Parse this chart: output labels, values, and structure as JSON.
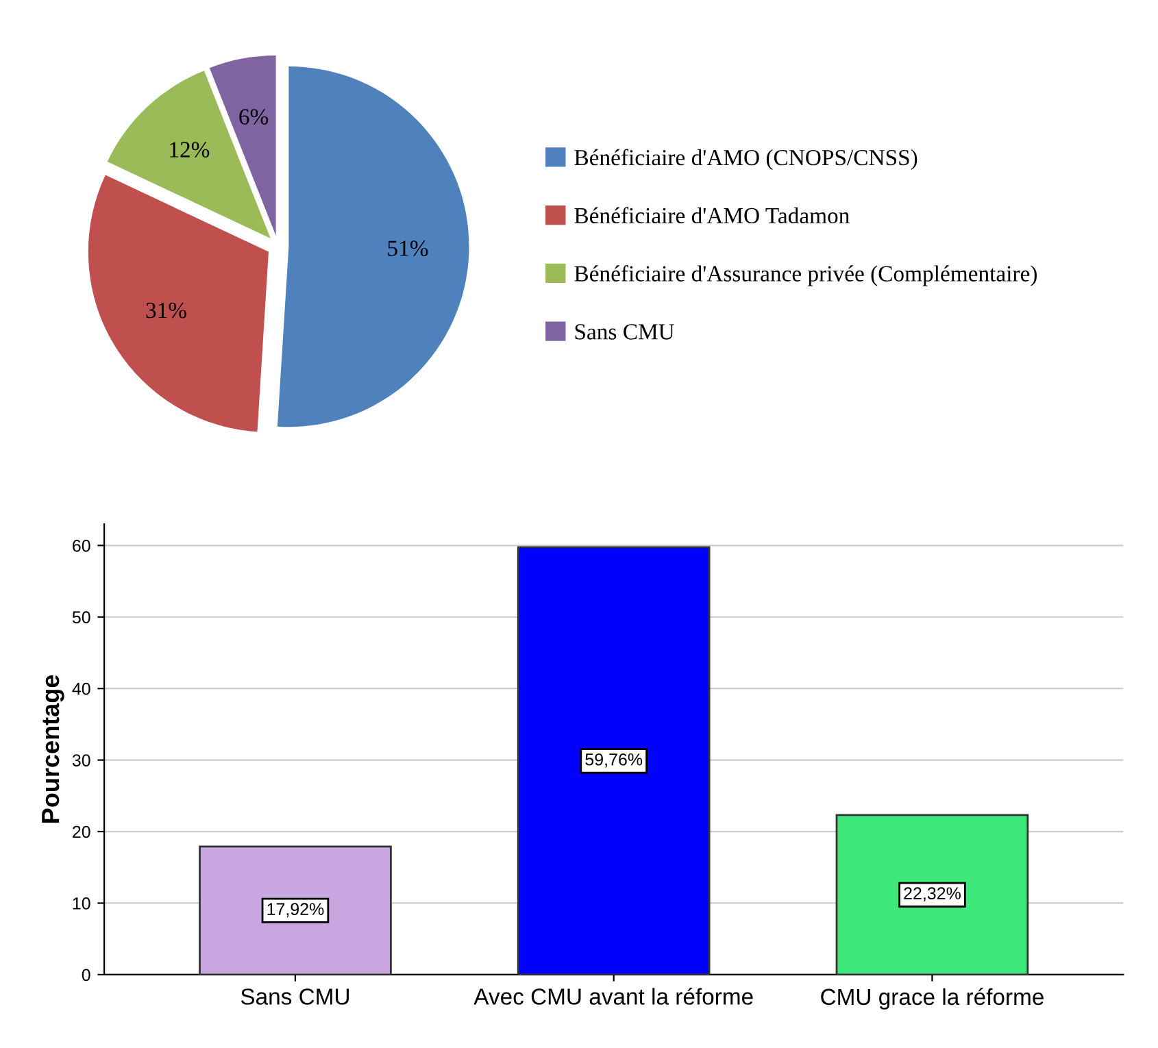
{
  "chart_data": [
    {
      "type": "pie",
      "categories": [
        "Bénéficiaire d'AMO (CNOPS/CNSS)",
        "Bénéficiaire d'AMO Tadamon",
        "Bénéficiaire d'Assurance privée (Complémentaire)",
        "Sans CMU"
      ],
      "values": [
        51,
        31,
        12,
        6
      ],
      "colors": [
        "#4f81bd",
        "#c0504d",
        "#9bbb59",
        "#8064a2"
      ],
      "value_labels": [
        "51%",
        "31%",
        "12%",
        "6%"
      ],
      "legend": "right"
    },
    {
      "type": "bar",
      "ylabel": "Pourcentage",
      "categories": [
        "Sans CMU",
        "Avec CMU avant la réforme",
        "CMU grace la réforme"
      ],
      "values": [
        17.92,
        59.76,
        22.32
      ],
      "colors": [
        "#c9a6e0",
        "#0000ff",
        "#3ee87a"
      ],
      "value_labels": [
        "17,92%",
        "59,76%",
        "22,32%"
      ],
      "ylim": [
        0,
        63
      ],
      "yticks": [
        0,
        10,
        20,
        30,
        40,
        50,
        60
      ],
      "grid": "y"
    }
  ]
}
